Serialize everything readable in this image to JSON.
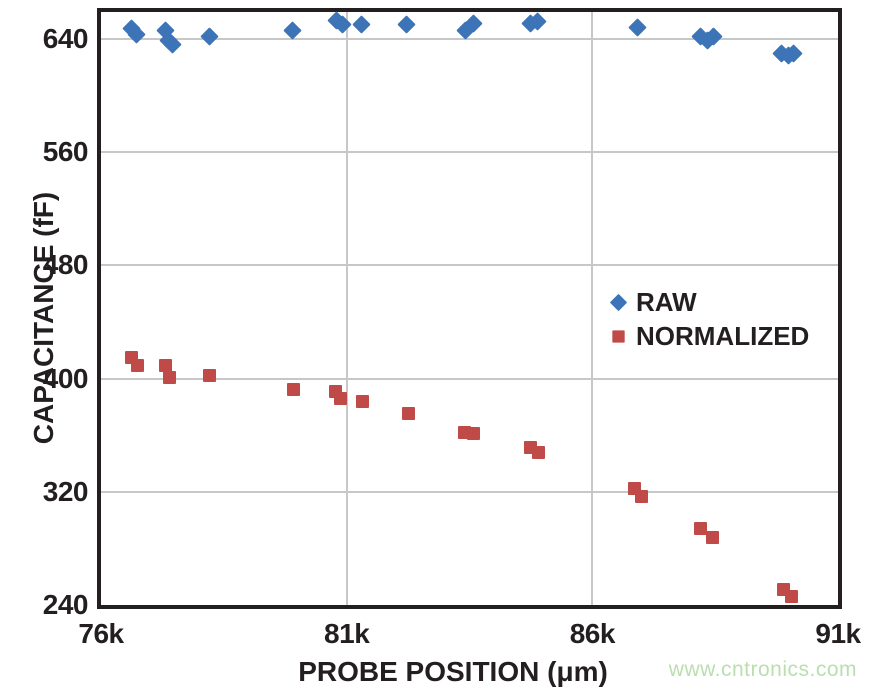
{
  "chart_data": {
    "type": "scatter",
    "title": "",
    "xlabel": "PROBE POSITION (μm)",
    "ylabel": "CAPACITANCE (fF)",
    "xlim": [
      76,
      91
    ],
    "ylim": [
      240,
      659
    ],
    "x_unit_suffix": "k",
    "x_ticks": [
      {
        "v": 76,
        "label": "76k"
      },
      {
        "v": 81,
        "label": "81k"
      },
      {
        "v": 86,
        "label": "86k"
      },
      {
        "v": 91,
        "label": "91k"
      }
    ],
    "y_ticks": [
      {
        "v": 240,
        "label": "240"
      },
      {
        "v": 320,
        "label": "320"
      },
      {
        "v": 400,
        "label": "400"
      },
      {
        "v": 480,
        "label": "480"
      },
      {
        "v": 560,
        "label": "560"
      },
      {
        "v": 640,
        "label": "640"
      }
    ],
    "x_gridlines": [
      81,
      86
    ],
    "y_gridlines": [
      320,
      400,
      480,
      560,
      640
    ],
    "grid_on": true,
    "grid_color": "#c7c7c7",
    "axis_color": "#231f20",
    "legend_position": "inside-middle-right",
    "series": [
      {
        "name": "RAW",
        "marker": "diamond",
        "color": "#3d73b7",
        "points": [
          [
            76.62,
            647
          ],
          [
            76.73,
            643
          ],
          [
            77.32,
            646
          ],
          [
            77.38,
            639
          ],
          [
            77.46,
            636
          ],
          [
            78.21,
            642
          ],
          [
            79.89,
            646
          ],
          [
            80.8,
            653
          ],
          [
            80.92,
            650
          ],
          [
            81.3,
            650
          ],
          [
            82.22,
            650
          ],
          [
            83.41,
            646
          ],
          [
            83.58,
            651
          ],
          [
            84.74,
            651
          ],
          [
            84.88,
            652
          ],
          [
            86.91,
            648
          ],
          [
            88.2,
            642
          ],
          [
            88.35,
            639
          ],
          [
            88.47,
            642
          ],
          [
            89.85,
            630
          ],
          [
            89.99,
            628
          ],
          [
            90.1,
            630
          ]
        ]
      },
      {
        "name": "NORMALIZED",
        "marker": "square",
        "color": "#c04a47",
        "points": [
          [
            76.62,
            415
          ],
          [
            76.74,
            409
          ],
          [
            77.31,
            409
          ],
          [
            77.4,
            401
          ],
          [
            78.21,
            402
          ],
          [
            79.91,
            392
          ],
          [
            80.78,
            391
          ],
          [
            80.88,
            386
          ],
          [
            81.32,
            384
          ],
          [
            82.25,
            375
          ],
          [
            83.39,
            362
          ],
          [
            83.59,
            361
          ],
          [
            84.75,
            351
          ],
          [
            84.9,
            348
          ],
          [
            86.85,
            322
          ],
          [
            87.0,
            317
          ],
          [
            88.2,
            294
          ],
          [
            88.45,
            288
          ],
          [
            89.9,
            251
          ],
          [
            90.05,
            246
          ]
        ]
      }
    ]
  },
  "watermark": {
    "text": "www.cntronics.com",
    "color": "#b9dfae"
  }
}
